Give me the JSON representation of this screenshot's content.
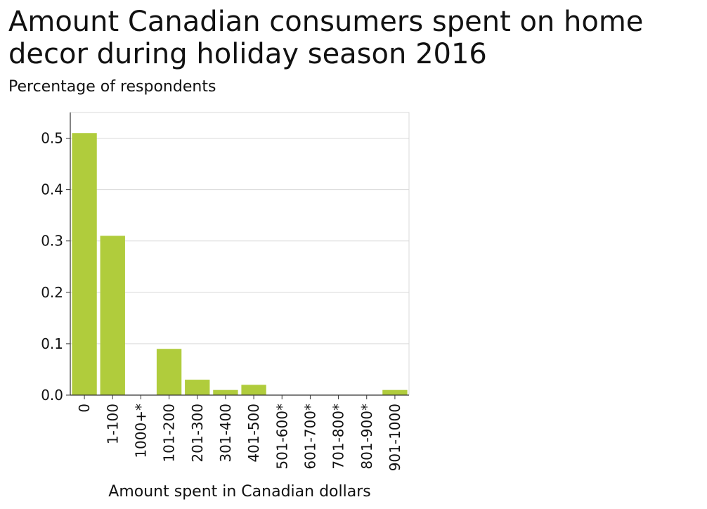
{
  "chart_data": {
    "type": "bar",
    "title": "Amount Canadian consumers spent on home decor during holiday season 2016",
    "ylabel": "Percentage of respondents",
    "xlabel": "Amount spent in Canadian dollars",
    "categories": [
      "0",
      "1-100",
      "1000+*",
      "101-200",
      "201-300",
      "301-400",
      "401-500",
      "501-600*",
      "601-700*",
      "701-800*",
      "801-900*",
      "901-1000"
    ],
    "values": [
      0.51,
      0.31,
      0,
      0.09,
      0.03,
      0.01,
      0.02,
      0,
      0,
      0,
      0,
      0.01
    ],
    "ylim": [
      0,
      0.55
    ],
    "yticks": [
      0.0,
      0.1,
      0.2,
      0.3,
      0.4,
      0.5
    ],
    "ytick_labels": [
      "0.0",
      "0.1",
      "0.2",
      "0.3",
      "0.4",
      "0.5"
    ],
    "grid": true,
    "bar_color": "#b0cc3c"
  }
}
